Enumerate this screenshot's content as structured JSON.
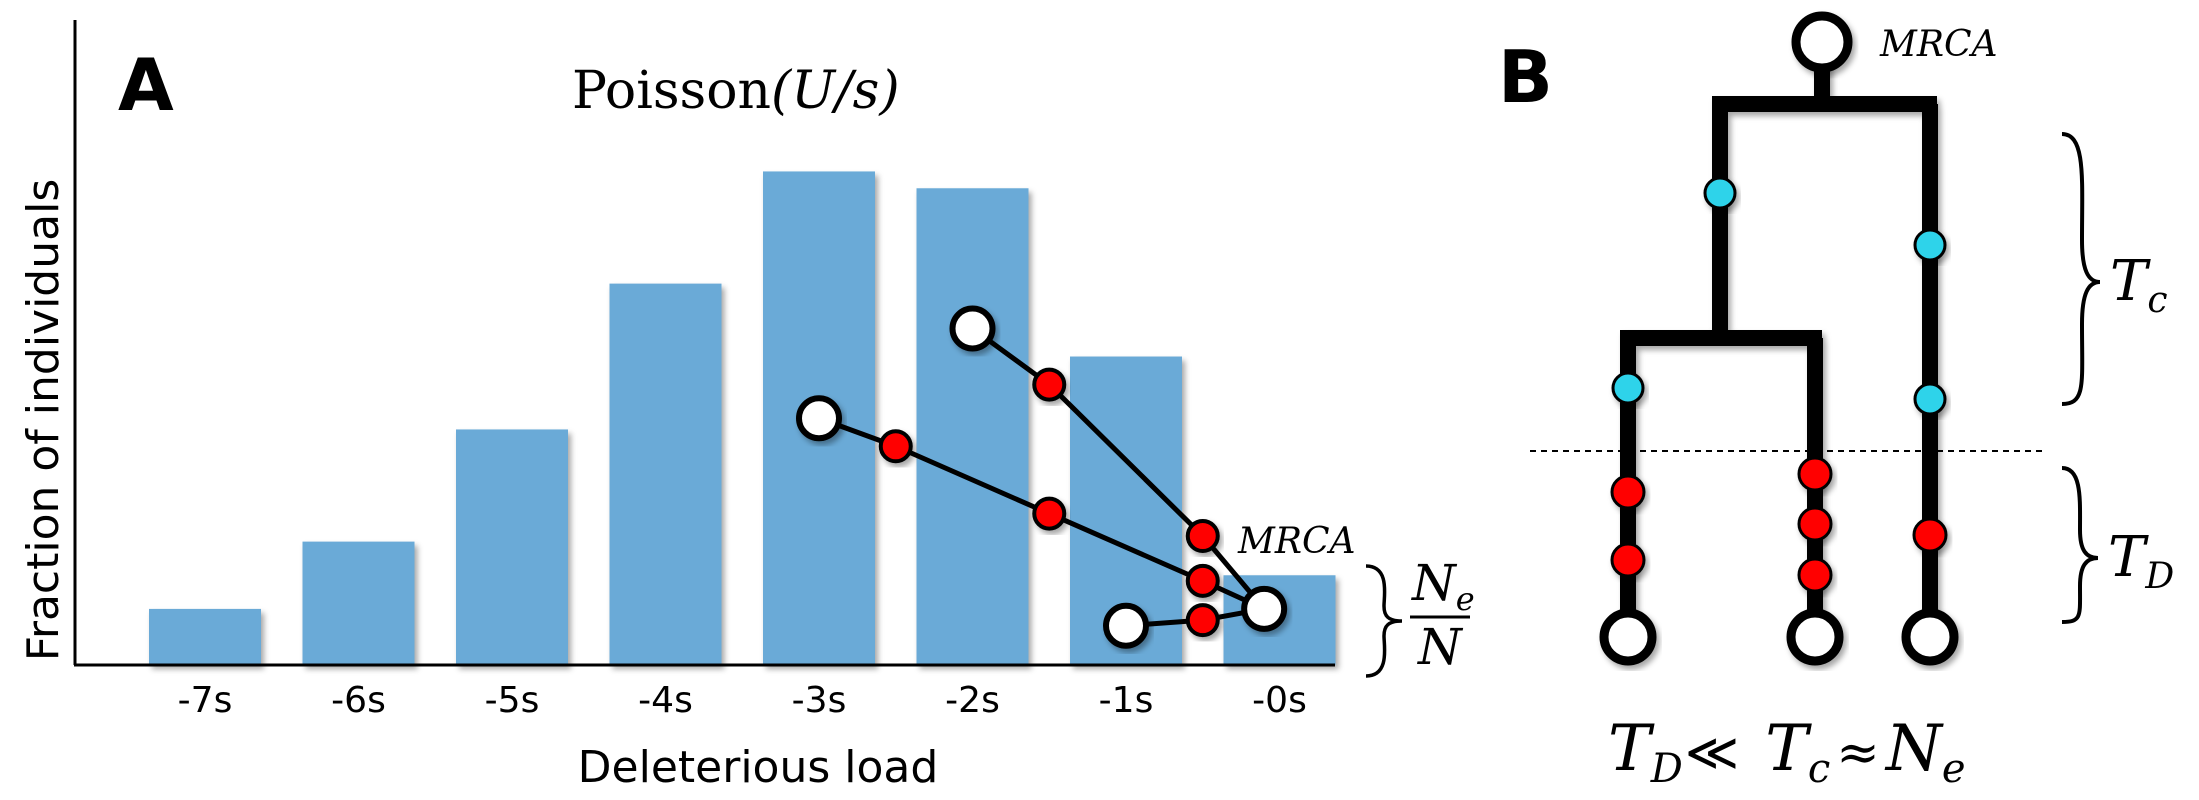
{
  "panel_a": {
    "letter": "A"
  },
  "panel_b": {
    "letter": "B"
  },
  "chart_data": {
    "type": "bar",
    "title_prefix": "Poisson",
    "title_param": "(U/s)",
    "xlabel": "Deleterious load",
    "ylabel": "Fraction of individuals",
    "categories": [
      "-7s",
      "-6s",
      "-5s",
      "-4s",
      "-3s",
      "-2s",
      "-1s",
      "-0s"
    ],
    "values": [
      0.1,
      0.22,
      0.42,
      0.68,
      0.88,
      0.85,
      0.55,
      0.16
    ],
    "ylim": [
      0,
      1.15
    ],
    "bar_color": "#6aaad7",
    "grid": false,
    "lineage_paths": [
      {
        "start": [
          -2.0,
          0.6
        ],
        "mutations": [
          [
            -1.5,
            0.5
          ],
          [
            -0.5,
            0.23
          ]
        ],
        "end": [
          -0.1,
          0.1
        ]
      },
      {
        "start": [
          -3.0,
          0.44
        ],
        "mutations": [
          [
            -2.5,
            0.39
          ],
          [
            -1.5,
            0.27
          ],
          [
            -0.5,
            0.15
          ]
        ],
        "end": [
          -0.1,
          0.1
        ]
      },
      {
        "start": [
          -1.0,
          0.07
        ],
        "mutations": [
          [
            -0.5,
            0.08
          ]
        ],
        "end": [
          -0.1,
          0.1
        ]
      }
    ],
    "mrca_label": "MRCA",
    "brace_label_num": "N",
    "brace_label_num_sub": "e",
    "brace_label_den": "N"
  },
  "tree": {
    "mrca_label": "MRCA",
    "tc_label": "T",
    "tc_sub": "c",
    "td_label": "T",
    "td_sub": "D",
    "bottom_eq": {
      "t1": "T",
      "t1_sub": "D",
      "rel1": "≪",
      "t2": "T",
      "t2_sub": "c",
      "rel2": "≈",
      "t3": "N",
      "t3_sub": "e"
    },
    "neutral_color": "#2fd3ea",
    "deleterious_color": "#ff0000"
  }
}
